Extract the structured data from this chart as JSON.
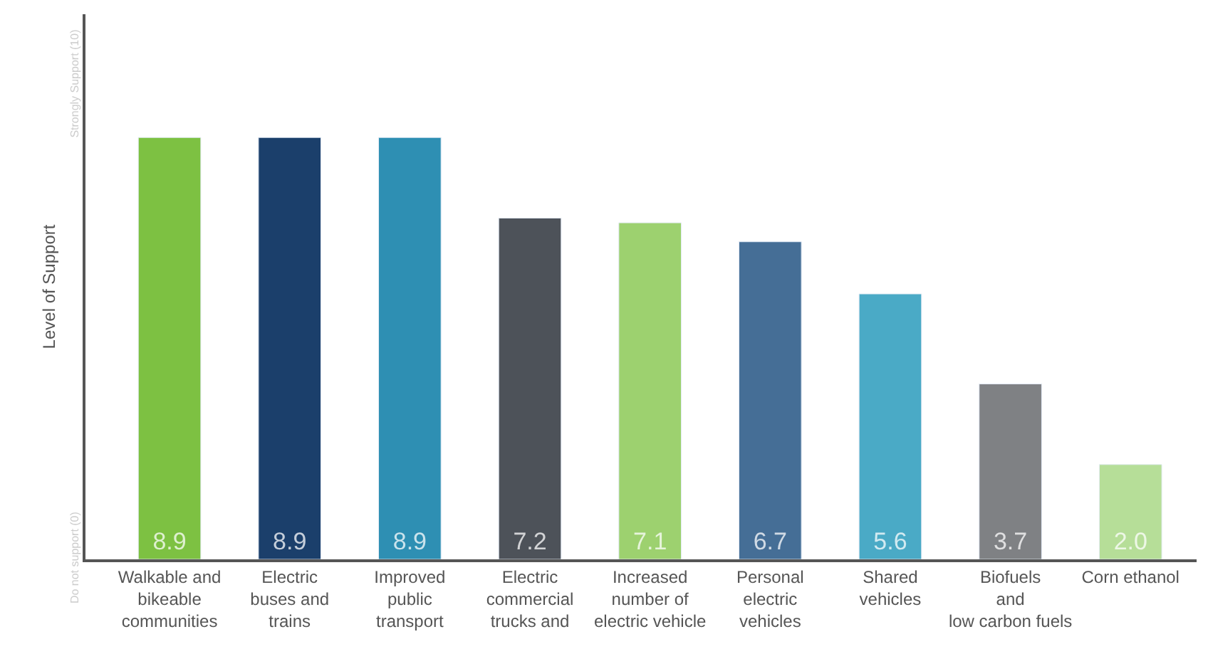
{
  "chart_data": {
    "type": "bar",
    "ylabel": "Level of Support",
    "categories": [
      "Walkable and\nbikeable\ncommunities",
      "Electric\nbuses and\ntrains",
      "Improved\npublic\ntransport",
      "Electric\ncommercial\ntrucks and",
      "Increased\nnumber of\nelectric vehicle",
      "Personal\nelectric\nvehicles",
      "Shared\nvehicles",
      "Biofuels\nand\nlow carbon fuels",
      "Corn ethanol"
    ],
    "values": [
      8.9,
      8.9,
      8.9,
      7.2,
      7.1,
      6.7,
      5.6,
      3.7,
      2.0
    ],
    "colors": [
      "#7dc142",
      "#1b3f6b",
      "#2e8fb3",
      "#4d5259",
      "#9dd16f",
      "#456e96",
      "#4aaac6",
      "#7f8184",
      "#b6de98"
    ],
    "value_labels": [
      "8.9",
      "8.9",
      "8.9",
      "7.2",
      "7.1",
      "6.7",
      "5.6",
      "3.7",
      "2.0"
    ],
    "ylim": [
      0,
      11.5
    ],
    "yticks": [
      {
        "value": 0,
        "label": "Do not support (0)"
      },
      {
        "value": 10,
        "label": "Strongly Support (10)"
      }
    ],
    "legend": false
  }
}
